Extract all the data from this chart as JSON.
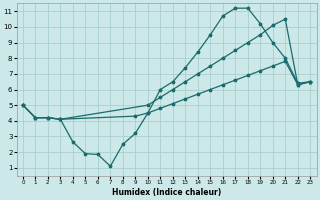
{
  "xlabel": "Humidex (Indice chaleur)",
  "background_color": "#cce8e8",
  "grid_color": "#aacfcf",
  "line_color": "#1a6b6b",
  "xlim": [
    -0.5,
    23.5
  ],
  "ylim": [
    0.5,
    11.5
  ],
  "xticks": [
    0,
    1,
    2,
    3,
    4,
    5,
    6,
    7,
    8,
    9,
    10,
    11,
    12,
    13,
    14,
    15,
    16,
    17,
    18,
    19,
    20,
    21,
    22,
    23
  ],
  "yticks": [
    1,
    2,
    3,
    4,
    5,
    6,
    7,
    8,
    9,
    10,
    11
  ],
  "line1_x": [
    0,
    1,
    2,
    3,
    9,
    10,
    11,
    12,
    13,
    14,
    15,
    16,
    17,
    18,
    19,
    20,
    21,
    22,
    23
  ],
  "line1_y": [
    5,
    4.2,
    4.2,
    4.1,
    4.3,
    4.5,
    4.8,
    5.1,
    5.4,
    5.7,
    6.0,
    6.3,
    6.6,
    6.9,
    7.2,
    7.5,
    7.8,
    6.3,
    6.5
  ],
  "line2_x": [
    0,
    1,
    2,
    3,
    4,
    5,
    6,
    7,
    8,
    9,
    10,
    11,
    12,
    13,
    14,
    15,
    16,
    17,
    18,
    19,
    20,
    21,
    22,
    23
  ],
  "line2_y": [
    5,
    4.2,
    4.2,
    4.1,
    2.65,
    1.9,
    1.85,
    1.1,
    2.5,
    3.2,
    4.5,
    6.0,
    6.5,
    7.4,
    8.4,
    9.5,
    10.7,
    11.2,
    11.2,
    10.2,
    9.0,
    8.0,
    6.4,
    6.5
  ],
  "line3_x": [
    0,
    1,
    2,
    3,
    10,
    11,
    12,
    13,
    14,
    15,
    16,
    17,
    18,
    19,
    20,
    21,
    22,
    23
  ],
  "line3_y": [
    5,
    4.2,
    4.2,
    4.1,
    5.0,
    5.5,
    6.0,
    6.5,
    7.0,
    7.5,
    8.0,
    8.5,
    9.0,
    9.5,
    10.1,
    10.5,
    6.3,
    6.5
  ],
  "xlabel_fontsize": 5.5,
  "tick_fontsize_x": 4.0,
  "tick_fontsize_y": 5.0,
  "linewidth": 0.9,
  "markersize": 2.5
}
